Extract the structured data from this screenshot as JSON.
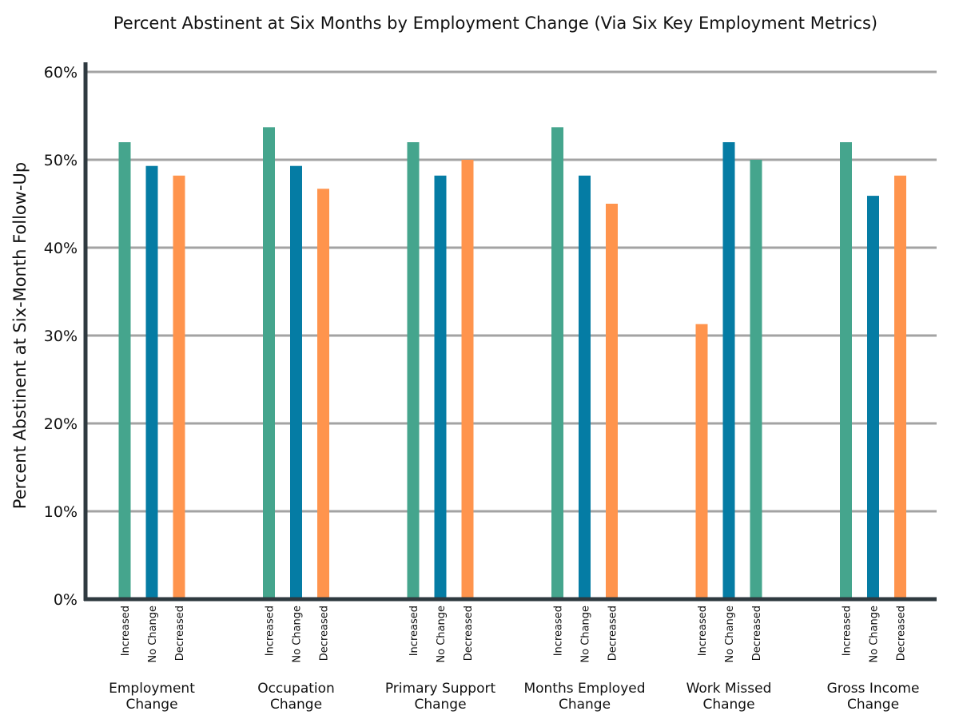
{
  "chart_data": {
    "type": "bar",
    "title": "Percent Abstinent at Six Months by Employment Change (Via Six Key Employment Metrics)",
    "xlabel": "",
    "ylabel": "Percent Abstinent at Six-Month Follow-Up",
    "ylim": [
      0,
      60
    ],
    "yticks": [
      0,
      10,
      20,
      30,
      40,
      50,
      60
    ],
    "ytick_suffix": "%",
    "grid": true,
    "colors": {
      "teal": "#45a58d",
      "blue": "#057ca4",
      "orange": "#ff944d"
    },
    "groups": [
      {
        "label_lines": [
          "Employment",
          "Change"
        ],
        "bars": [
          {
            "label": "Increased",
            "value": 52,
            "color": "#45a58d"
          },
          {
            "label": "No Change",
            "value": 49.3,
            "color": "#057ca4"
          },
          {
            "label": "Decreased",
            "value": 48.2,
            "color": "#ff944d"
          }
        ]
      },
      {
        "label_lines": [
          "Occupation",
          "Change"
        ],
        "bars": [
          {
            "label": "Increased",
            "value": 53.7,
            "color": "#45a58d"
          },
          {
            "label": "No Change",
            "value": 49.3,
            "color": "#057ca4"
          },
          {
            "label": "Decreased",
            "value": 46.7,
            "color": "#ff944d"
          }
        ]
      },
      {
        "label_lines": [
          "Primary Support",
          "Change"
        ],
        "bars": [
          {
            "label": "Increased",
            "value": 52,
            "color": "#45a58d"
          },
          {
            "label": "No Change",
            "value": 48.2,
            "color": "#057ca4"
          },
          {
            "label": "Decreased",
            "value": 50,
            "color": "#ff944d"
          }
        ]
      },
      {
        "label_lines": [
          "Months Employed",
          "Change"
        ],
        "bars": [
          {
            "label": "Increased",
            "value": 53.7,
            "color": "#45a58d"
          },
          {
            "label": "No Change",
            "value": 48.2,
            "color": "#057ca4"
          },
          {
            "label": "Decreased",
            "value": 45,
            "color": "#ff944d"
          }
        ]
      },
      {
        "label_lines": [
          "Work Missed",
          "Change"
        ],
        "bars": [
          {
            "label": "Increased",
            "value": 31.3,
            "color": "#ff944d"
          },
          {
            "label": "No Change",
            "value": 52,
            "color": "#057ca4"
          },
          {
            "label": "Decreased",
            "value": 50,
            "color": "#45a58d"
          }
        ]
      },
      {
        "label_lines": [
          "Gross Income",
          "Change"
        ],
        "bars": [
          {
            "label": "Increased",
            "value": 52,
            "color": "#45a58d"
          },
          {
            "label": "No Change",
            "value": 45.9,
            "color": "#057ca4"
          },
          {
            "label": "Decreased",
            "value": 48.2,
            "color": "#ff944d"
          }
        ]
      }
    ]
  }
}
